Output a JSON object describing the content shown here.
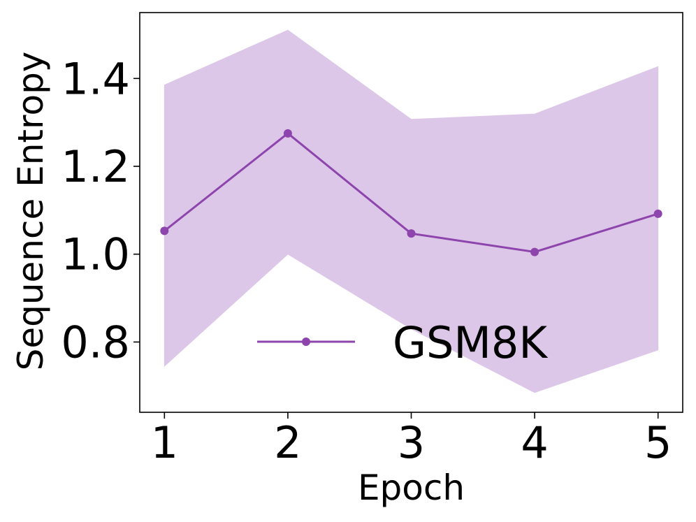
{
  "chart_data": {
    "type": "line",
    "title": "",
    "xlabel": "Epoch",
    "ylabel": "Sequence Entropy",
    "x": [
      1,
      2,
      3,
      4,
      5
    ],
    "xticks": [
      "1",
      "2",
      "3",
      "4",
      "5"
    ],
    "yticks": [
      "0.8",
      "1.0",
      "1.2",
      "1.4"
    ],
    "ytick_values": [
      0.8,
      1.0,
      1.2,
      1.4
    ],
    "xlim": [
      0.8,
      5.2
    ],
    "ylim": [
      0.64,
      1.55
    ],
    "grid": false,
    "legend_placement": "lower-center",
    "series": [
      {
        "name": "GSM8K",
        "values": [
          1.053,
          1.275,
          1.047,
          1.005,
          1.092
        ],
        "band_upper": [
          1.385,
          1.51,
          1.307,
          1.319,
          1.427
        ],
        "band_lower": [
          0.745,
          1.0,
          0.83,
          0.685,
          0.782
        ],
        "color": "#8e44ad",
        "band_color": "#dcc7e8"
      }
    ]
  }
}
